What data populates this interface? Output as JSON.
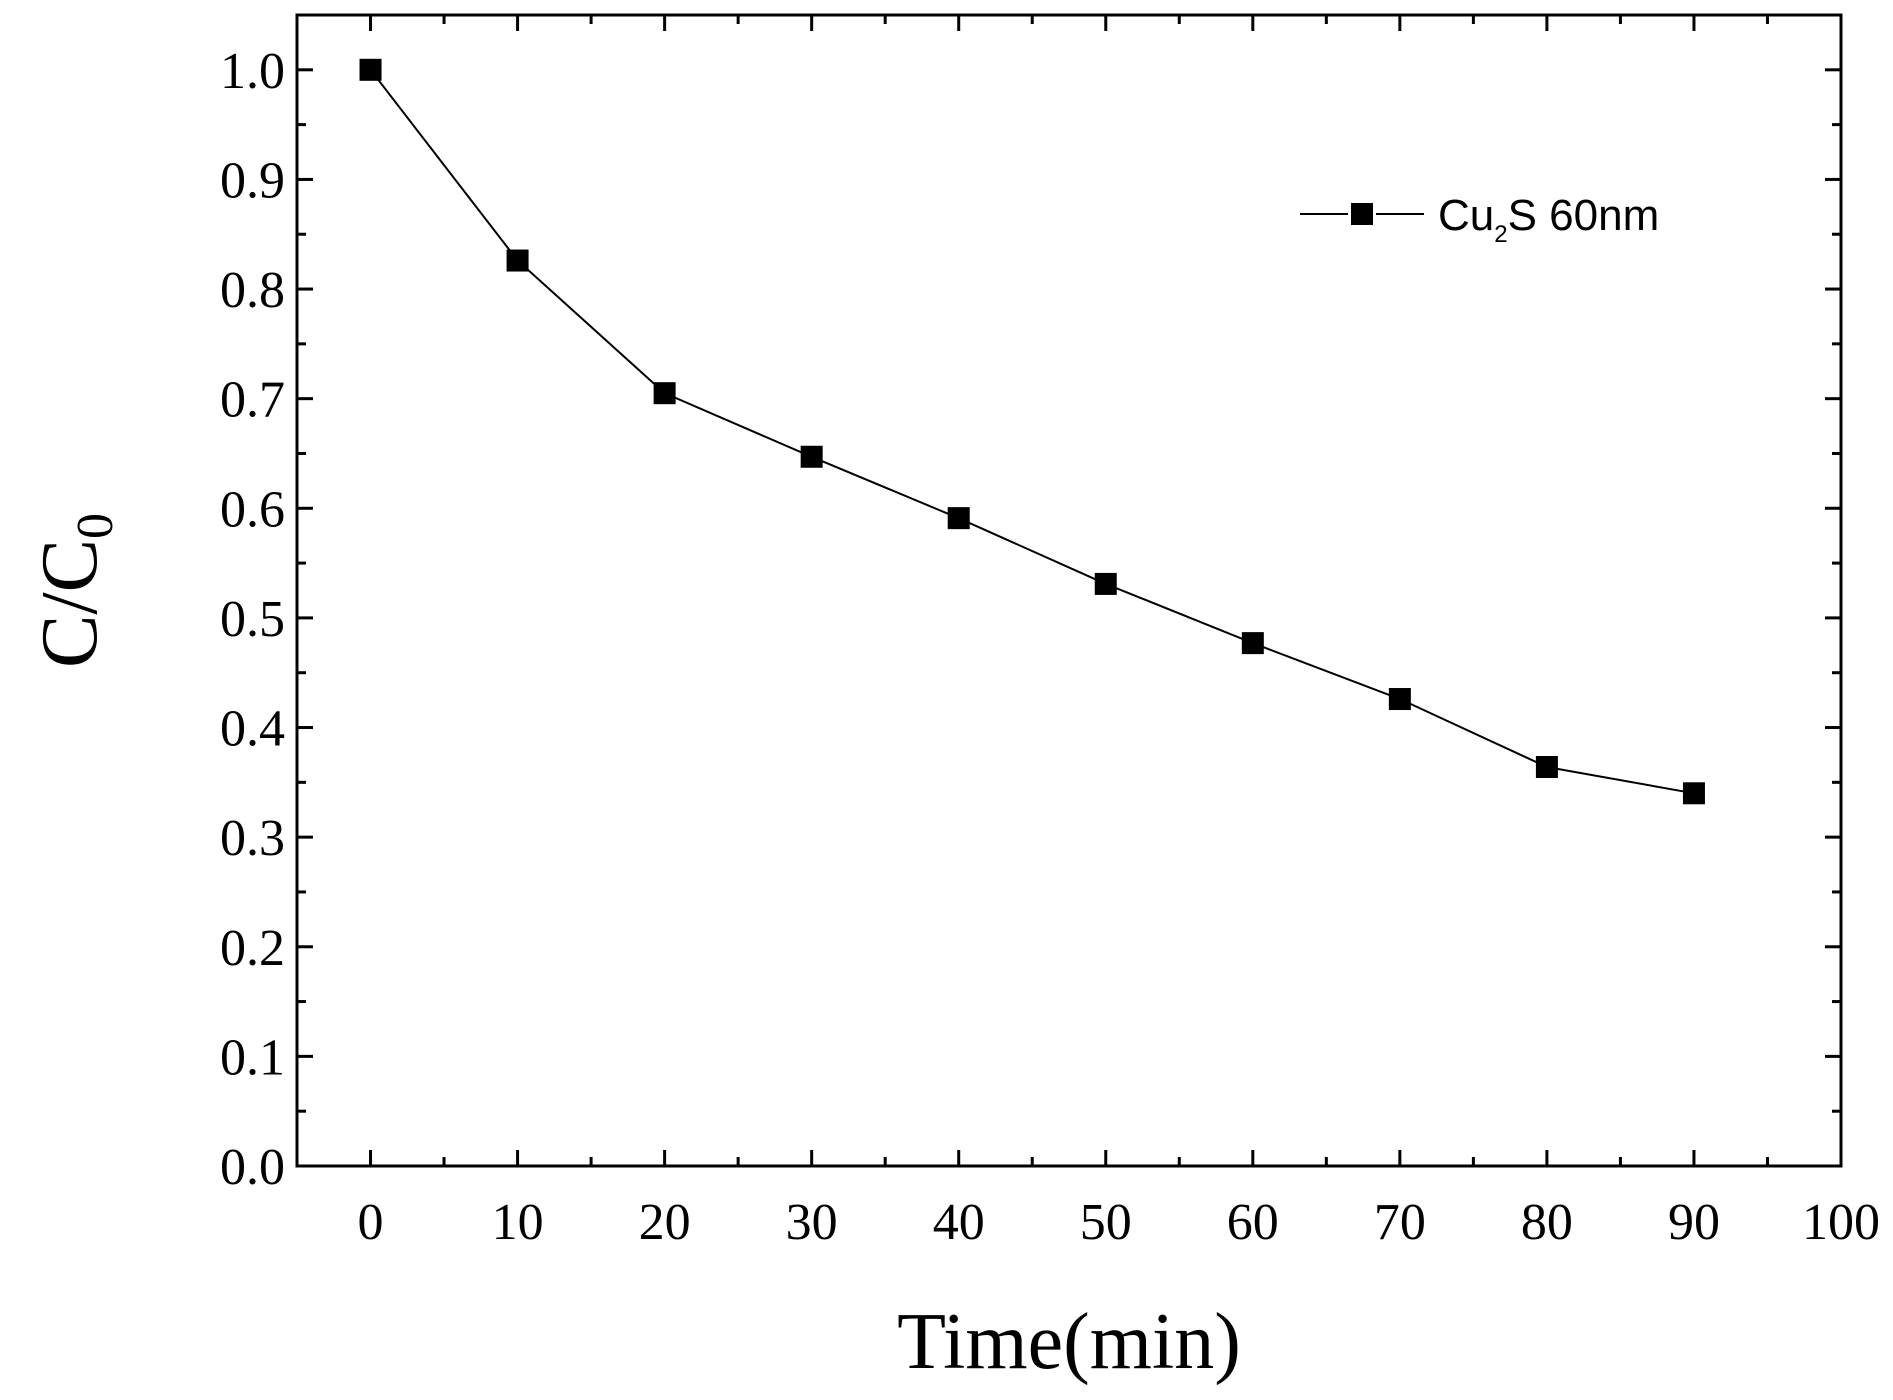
{
  "chart_data": {
    "type": "line",
    "title": "",
    "xlabel": "Time(min)",
    "ylabel": {
      "main": "C/C",
      "sub": "0"
    },
    "xlim": [
      -5,
      100
    ],
    "ylim": [
      0.0,
      1.05
    ],
    "x_ticks": [
      "0",
      "10",
      "20",
      "30",
      "40",
      "50",
      "60",
      "70",
      "80",
      "90",
      "100"
    ],
    "y_ticks": [
      "0.0",
      "0.1",
      "0.2",
      "0.3",
      "0.4",
      "0.5",
      "0.6",
      "0.7",
      "0.8",
      "0.9",
      "1.0"
    ],
    "grid": false,
    "legend_position": "top-right",
    "series": [
      {
        "name": {
          "main": "Cu",
          "sub": "2",
          "rest": "S 60nm"
        },
        "marker": "square",
        "color": "#000000",
        "x": [
          0,
          10,
          20,
          30,
          40,
          50,
          60,
          70,
          80,
          90
        ],
        "y": [
          1.0,
          0.826,
          0.705,
          0.647,
          0.591,
          0.531,
          0.477,
          0.426,
          0.364,
          0.34
        ]
      }
    ]
  }
}
